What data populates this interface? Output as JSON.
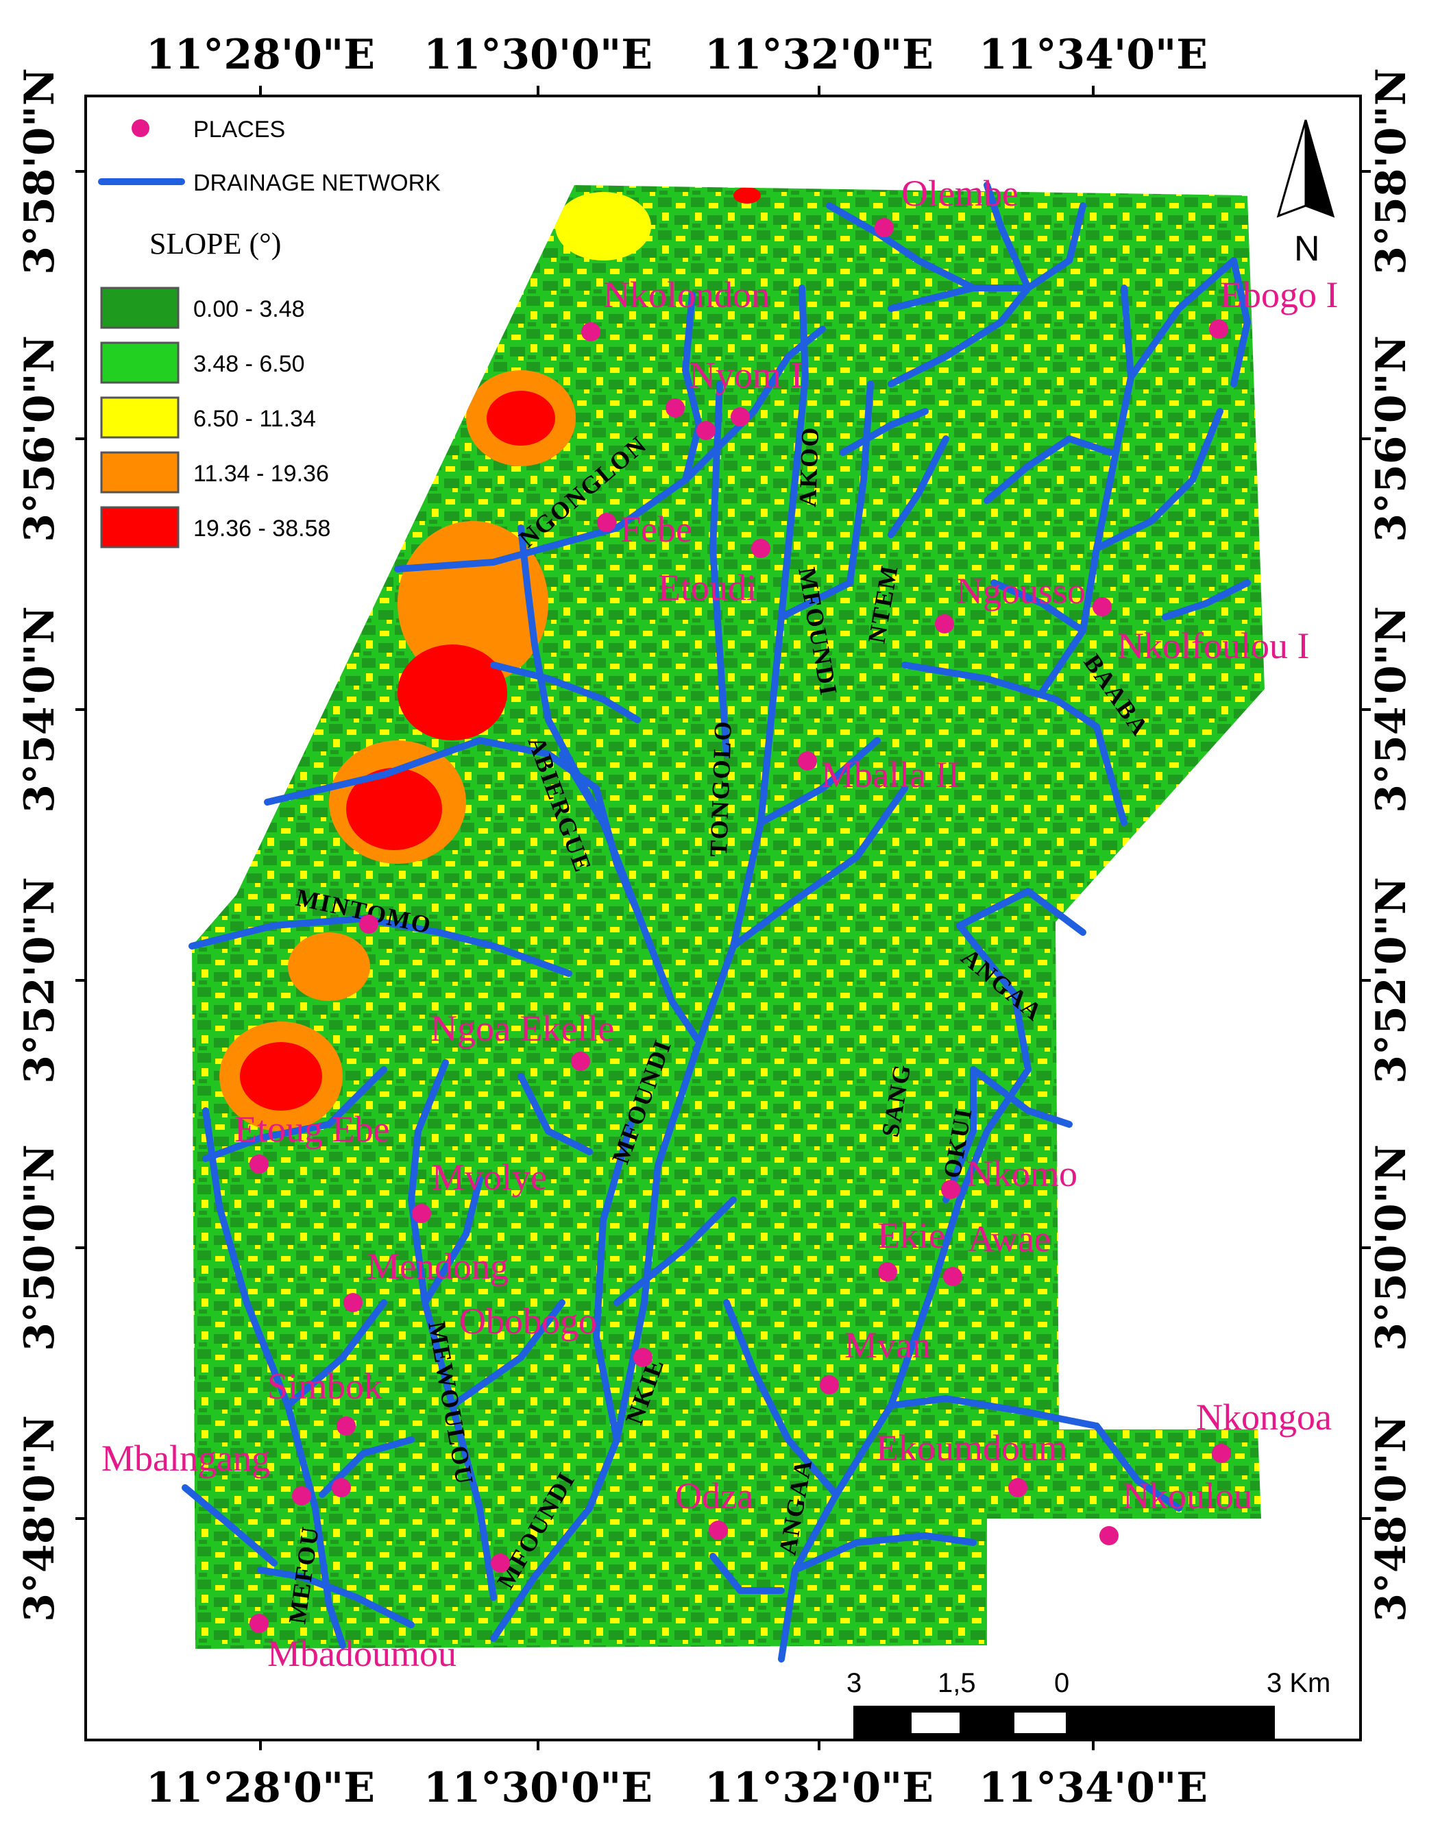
{
  "top_longitudes": [
    "11°28'0\"E",
    "11°30'0\"E",
    "11°32'0\"E",
    "11°34'0\"E"
  ],
  "bottom_longitudes": [
    "11°28'0\"E",
    "11°30'0\"E",
    "11°32'0\"E",
    "11°34'0\"E"
  ],
  "left_latitudes": [
    "3°58'0\"N",
    "3°56'0\"N",
    "3°54'0\"N",
    "3°52'0\"N",
    "3°50'0\"N",
    "3°48'0\"N"
  ],
  "right_latitudes": [
    "3°58'0\"N",
    "3°56'0\"N",
    "3°54'0\"N",
    "3°52'0\"N",
    "3°50'0\"N",
    "3°48'0\"N"
  ],
  "legend": {
    "places_label": "PLACES",
    "drainage_label": "DRAINAGE NETWORK",
    "slope_title": "SLOPE (°)",
    "classes": [
      {
        "label": "0.00 - 3.48",
        "color": "#1e9a1e"
      },
      {
        "label": "3.48 - 6.50",
        "color": "#22d022"
      },
      {
        "label": "6.50 - 11.34",
        "color": "#ffff00"
      },
      {
        "label": "11.34 - 19.36",
        "color": "#ff8c00"
      },
      {
        "label": "19.36 - 38.58",
        "color": "#ff0000"
      }
    ]
  },
  "colors": {
    "place": "#e6198a",
    "river": "#2060e0"
  },
  "north_label": "N",
  "scale": {
    "labels": [
      "3",
      "1,5",
      "0",
      "3 Km"
    ]
  },
  "places": [
    {
      "name": "Olembe"
    },
    {
      "name": "Nkolondon"
    },
    {
      "name": "Ebogo I"
    },
    {
      "name": "Nyom I"
    },
    {
      "name": "Febe"
    },
    {
      "name": "Etoudi"
    },
    {
      "name": "Ngousso"
    },
    {
      "name": "Nkolfoulou I"
    },
    {
      "name": "Mballa II"
    },
    {
      "name": "Ngoa Ekelle"
    },
    {
      "name": "Etoug Ebe"
    },
    {
      "name": "Mvolye"
    },
    {
      "name": "Nkomo"
    },
    {
      "name": "Ekie"
    },
    {
      "name": "Awae"
    },
    {
      "name": "Mendong"
    },
    {
      "name": "Obobogo"
    },
    {
      "name": "Mvan"
    },
    {
      "name": "Simbok"
    },
    {
      "name": "Nkongoa"
    },
    {
      "name": "Mbalngang"
    },
    {
      "name": "Ekoumdoum"
    },
    {
      "name": "Odza"
    },
    {
      "name": "Nkoulou"
    },
    {
      "name": "Mbadoumou"
    }
  ],
  "rivers": [
    {
      "name": "NGONGLON"
    },
    {
      "name": "AKOO"
    },
    {
      "name": "MFOUNDI"
    },
    {
      "name": "NTEM"
    },
    {
      "name": "TONGOLO"
    },
    {
      "name": "BAABA"
    },
    {
      "name": "ABIERGUE"
    },
    {
      "name": "MINTOMO"
    },
    {
      "name": "ANGAA"
    },
    {
      "name": "MFOUNDI"
    },
    {
      "name": "SANG"
    },
    {
      "name": "OKUI"
    },
    {
      "name": "MEWOULOU"
    },
    {
      "name": "NKIE"
    },
    {
      "name": "ANGAA"
    },
    {
      "name": "MFOUNDI"
    },
    {
      "name": "MEFOU"
    }
  ]
}
